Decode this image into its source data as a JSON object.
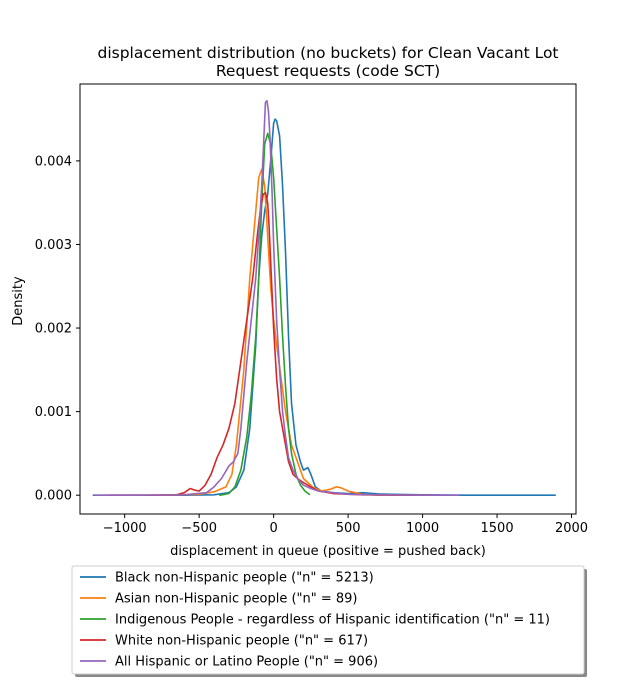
{
  "chart_data": {
    "type": "line",
    "title_lines": [
      "displacement distribution (no buckets)  for Clean Vacant Lot",
      "Request requests (code SCT)"
    ],
    "xlabel": "displacement in queue (positive = pushed back)",
    "ylabel": "Density",
    "xlim": [
      -1300,
      2030
    ],
    "ylim": [
      -0.000225,
      0.00492
    ],
    "xticks": [
      -1000,
      -500,
      0,
      500,
      1000,
      1500,
      2000
    ],
    "xtick_labels": [
      "−1000",
      "−500",
      "0",
      "500",
      "1000",
      "1500",
      "2000"
    ],
    "yticks": [
      0.0,
      0.001,
      0.002,
      0.003,
      0.004
    ],
    "ytick_labels": [
      "0.000",
      "0.001",
      "0.002",
      "0.003",
      "0.004"
    ],
    "grid": false,
    "legend_position": "below plot",
    "series": [
      {
        "name": "Black non-Hispanic people (\"n\" = 5213)",
        "color": "#1f77b4",
        "x": [
          -1210,
          -900,
          -600,
          -400,
          -300,
          -250,
          -200,
          -160,
          -120,
          -100,
          -80,
          -60,
          -40,
          -20,
          0,
          10,
          20,
          40,
          60,
          80,
          100,
          120,
          150,
          180,
          200,
          230,
          250,
          280,
          320,
          400,
          500,
          600,
          700,
          800,
          1000,
          1300,
          1600,
          1890
        ],
        "y": [
          0,
          0,
          0,
          5e-06,
          3e-05,
          0.0001,
          0.0003,
          0.0008,
          0.0018,
          0.0026,
          0.0031,
          0.0034,
          0.0036,
          0.004,
          0.00445,
          0.0045,
          0.00448,
          0.0043,
          0.0037,
          0.0029,
          0.0019,
          0.0011,
          0.0006,
          0.0004,
          0.0003,
          0.00033,
          0.00025,
          0.0001,
          5e-05,
          3e-05,
          2e-05,
          3e-05,
          1.5e-05,
          1e-05,
          5e-06,
          0,
          0,
          0
        ]
      },
      {
        "name": "Asian non-Hispanic people (\"n\" = 89)",
        "color": "#ff7f0e",
        "x": [
          -1100,
          -700,
          -500,
          -400,
          -320,
          -280,
          -250,
          -200,
          -160,
          -120,
          -100,
          -80,
          -60,
          -40,
          -20,
          0,
          20,
          50,
          80,
          120,
          160,
          200,
          260,
          320,
          380,
          420,
          450,
          500,
          600,
          700,
          800,
          1000
        ],
        "y": [
          0,
          0,
          1e-05,
          4e-05,
          0.0001,
          0.00025,
          0.0006,
          0.0015,
          0.0026,
          0.0034,
          0.0038,
          0.0039,
          0.0037,
          0.0031,
          0.0025,
          0.0021,
          0.0018,
          0.0014,
          0.001,
          0.0006,
          0.0004,
          0.0002,
          0.0001,
          5e-05,
          7e-05,
          0.0001,
          9e-05,
          5e-05,
          1e-05,
          0,
          0,
          0
        ]
      },
      {
        "name": "Indigenous People - regardless of Hispanic identification (\"n\" = 11)",
        "color": "#2ca02c",
        "x": [
          -360,
          -300,
          -260,
          -220,
          -180,
          -150,
          -120,
          -100,
          -80,
          -60,
          -40,
          -20,
          0,
          20,
          40,
          60,
          80,
          100,
          120,
          150,
          180,
          210,
          240
        ],
        "y": [
          0,
          2e-05,
          0.0001,
          0.0003,
          0.0007,
          0.0012,
          0.0019,
          0.0026,
          0.0035,
          0.0042,
          0.00433,
          0.0042,
          0.0038,
          0.0032,
          0.0026,
          0.0019,
          0.0013,
          0.0008,
          0.0005,
          0.00025,
          0.00012,
          5e-05,
          1e-05
        ]
      },
      {
        "name": "White non-Hispanic people (\"n\" = 617)",
        "color": "#d62728",
        "x": [
          -1100,
          -800,
          -650,
          -600,
          -560,
          -530,
          -500,
          -460,
          -420,
          -380,
          -340,
          -300,
          -260,
          -220,
          -180,
          -140,
          -110,
          -90,
          -70,
          -55,
          -40,
          -30,
          -20,
          0,
          20,
          40,
          60,
          80,
          100,
          130,
          160,
          200,
          250,
          300,
          400,
          600,
          900,
          1100
        ],
        "y": [
          0,
          0,
          5e-06,
          3e-05,
          8e-05,
          6e-05,
          5e-05,
          0.00012,
          0.00025,
          0.00045,
          0.0006,
          0.0008,
          0.0011,
          0.0016,
          0.0021,
          0.0026,
          0.0031,
          0.0034,
          0.0036,
          0.00362,
          0.0035,
          0.0032,
          0.0028,
          0.002,
          0.0014,
          0.001,
          0.0008,
          0.0006,
          0.0004,
          0.00025,
          0.0002,
          0.00015,
          0.0001,
          5e-05,
          2e-05,
          5e-06,
          0,
          0
        ]
      },
      {
        "name": "All Hispanic or Latino People (\"n\" = 906)",
        "color": "#9467bd",
        "x": [
          -1200,
          -900,
          -600,
          -450,
          -400,
          -350,
          -300,
          -270,
          -240,
          -220,
          -200,
          -180,
          -150,
          -120,
          -100,
          -80,
          -65,
          -55,
          -45,
          -35,
          -25,
          -10,
          0,
          20,
          40,
          60,
          80,
          100,
          130,
          160,
          200,
          250,
          300,
          400,
          500,
          700,
          1000,
          1240
        ],
        "y": [
          0,
          0,
          5e-06,
          3e-05,
          0.0001,
          0.0002,
          0.00035,
          0.0004,
          0.0005,
          0.0008,
          0.0012,
          0.0016,
          0.0021,
          0.0026,
          0.0031,
          0.0037,
          0.0043,
          0.0047,
          0.00472,
          0.0046,
          0.0043,
          0.0036,
          0.003,
          0.0021,
          0.0015,
          0.001,
          0.0007,
          0.00045,
          0.0003,
          0.0002,
          0.00012,
          8e-05,
          5e-05,
          3e-05,
          1e-05,
          5e-06,
          0,
          0
        ]
      }
    ]
  }
}
